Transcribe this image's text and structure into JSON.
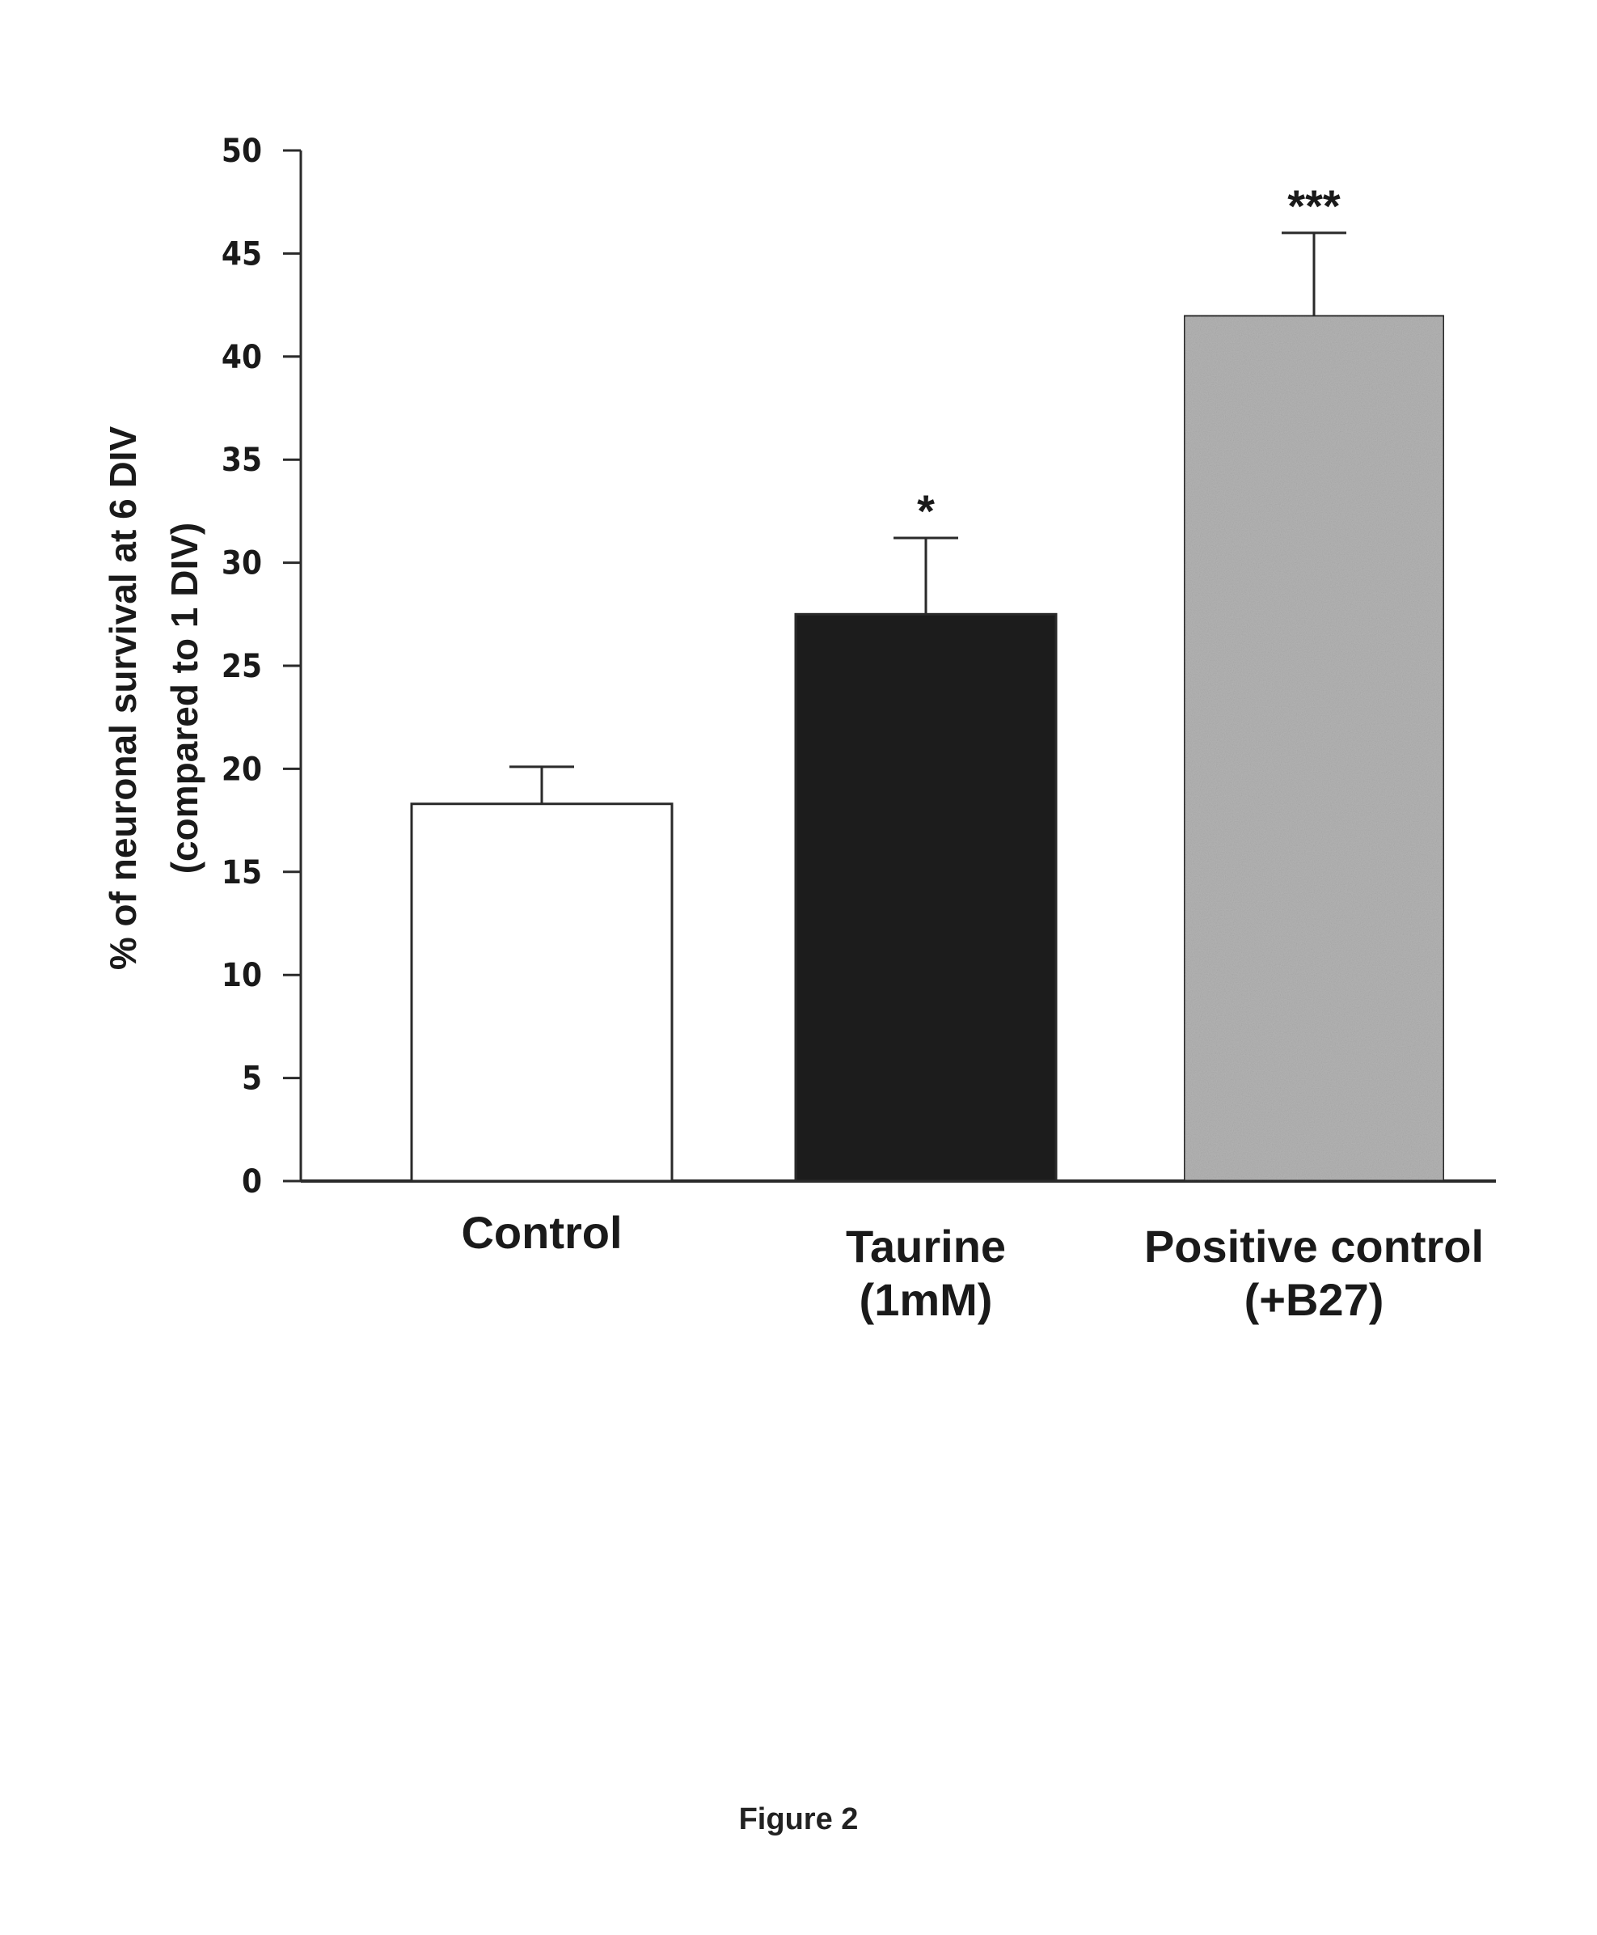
{
  "caption": "Figure 2",
  "chart_data": {
    "type": "bar",
    "categories": [
      [
        "Control"
      ],
      [
        "Taurine",
        "(1mM)"
      ],
      [
        "Positive control",
        "(+B27)"
      ]
    ],
    "values": [
      18.3,
      27.5,
      42.0
    ],
    "errors": [
      1.8,
      3.7,
      4.0
    ],
    "significance": [
      "",
      "*",
      "***"
    ],
    "colors": [
      "#ffffff",
      "#1c1c1c",
      "#b4b4b4"
    ],
    "ylabel": [
      "% of neuronal survival at 6 DIV",
      "(compared to 1 DIV)"
    ],
    "ylim": [
      0,
      50
    ],
    "yticks": [
      0,
      5,
      10,
      15,
      20,
      25,
      30,
      35,
      40,
      45,
      50
    ],
    "grid": false,
    "legend": "none"
  }
}
